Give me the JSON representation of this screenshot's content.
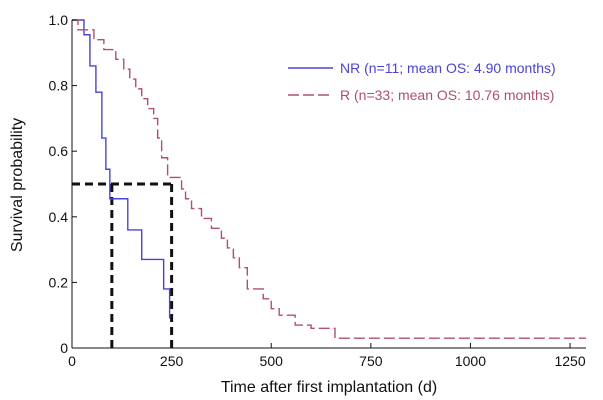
{
  "chart_data": {
    "type": "line",
    "subtype": "step",
    "xlabel": "Time after first implantation (d)",
    "ylabel": "Survival probability",
    "xlim": [
      0,
      1290
    ],
    "ylim": [
      0,
      1.0
    ],
    "xticks": [
      0,
      250,
      500,
      750,
      1000,
      1250
    ],
    "yticks": [
      0,
      0.2,
      0.4,
      0.6,
      0.8,
      1.0
    ],
    "ytick_labels": [
      "0",
      "0.2",
      "0.4",
      "0.6",
      "0.8",
      "1.0"
    ],
    "grid": false,
    "legend_position": "top-right",
    "series": [
      {
        "name": "NR (n=11; mean OS: 4.90 months)",
        "color": "#4a43d6",
        "dash": "solid",
        "x": [
          0,
          30,
          45,
          60,
          75,
          85,
          95,
          140,
          175,
          230,
          245
        ],
        "y": [
          1.0,
          0.955,
          0.86,
          0.78,
          0.64,
          0.545,
          0.455,
          0.36,
          0.27,
          0.18,
          0.09
        ]
      },
      {
        "name": "R (n=33; mean OS: 10.76 months)",
        "color": "#b0506a",
        "dash": "dashed",
        "x": [
          0,
          15,
          55,
          80,
          110,
          130,
          145,
          160,
          175,
          190,
          205,
          215,
          225,
          240,
          275,
          285,
          300,
          325,
          350,
          375,
          390,
          405,
          420,
          440,
          480,
          500,
          520,
          560,
          600,
          625,
          660,
          1290
        ],
        "y": [
          1.0,
          0.97,
          0.94,
          0.91,
          0.88,
          0.85,
          0.82,
          0.79,
          0.76,
          0.73,
          0.7,
          0.64,
          0.58,
          0.52,
          0.485,
          0.455,
          0.425,
          0.395,
          0.365,
          0.335,
          0.305,
          0.275,
          0.245,
          0.18,
          0.15,
          0.12,
          0.1,
          0.07,
          0.06,
          0.06,
          0.03,
          0.03
        ]
      }
    ],
    "reference_lines": {
      "color": "#111111",
      "y": 0.5,
      "x_values": [
        100,
        250
      ]
    }
  }
}
